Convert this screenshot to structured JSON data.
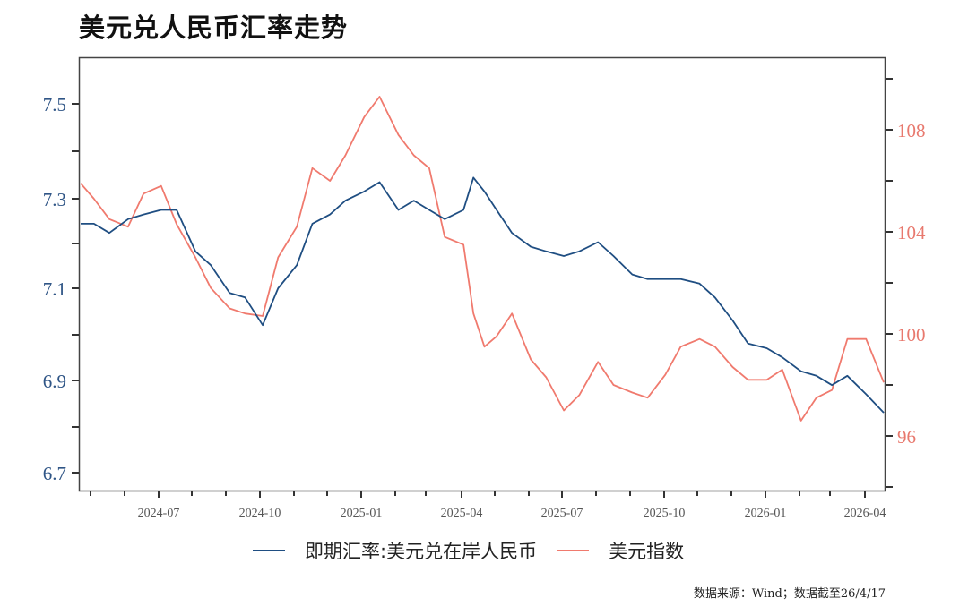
{
  "title": "美元兑人民币汇率走势",
  "legend": {
    "series1": "即期汇率:美元兑在岸人民币",
    "series2": "美元指数"
  },
  "source": "数据来源：Wind；数据截至26/4/17",
  "colors": {
    "cny": "#1f4e82",
    "dxy": "#f07a6e",
    "left_axis_text": "#2f5586",
    "right_axis_text": "#e8796e"
  },
  "axes": {
    "left_ticks": [
      "7.5",
      "7.3",
      "7.1",
      "6.9",
      "6.7"
    ],
    "right_ticks": [
      "108",
      "104",
      "100",
      "96"
    ],
    "x_ticks": [
      "2024-07",
      "2024-10",
      "2025-01",
      "2025-04",
      "2025-07",
      "2025-10",
      "2026-01",
      "2026-04"
    ]
  },
  "chart_data": {
    "type": "line",
    "title": "美元兑人民币汇率走势",
    "xlabel": "",
    "ylabel": "",
    "y_left": {
      "label": "即期汇率:美元兑在岸人民币",
      "ylim": [
        6.66,
        7.6
      ],
      "ticks": [
        7.5,
        7.3,
        7.1,
        6.9,
        6.7
      ]
    },
    "y_right": {
      "label": "美元指数",
      "ylim": [
        94,
        110
      ],
      "ticks": [
        108,
        104,
        100,
        96
      ]
    },
    "x_ticks": [
      "2024-07",
      "2024-10",
      "2025-01",
      "2025-04",
      "2025-07",
      "2025-10",
      "2026-01",
      "2026-04"
    ],
    "x_range": [
      "2024-04-19",
      "2026-04-17"
    ],
    "grid": false,
    "legend_position": "bottom",
    "series": [
      {
        "name": "即期汇率:美元兑在岸人民币",
        "axis": "left",
        "x": [
          "2024-04-19",
          "2024-05-01",
          "2024-05-15",
          "2024-06-01",
          "2024-06-15",
          "2024-07-01",
          "2024-07-15",
          "2024-08-01",
          "2024-08-15",
          "2024-09-01",
          "2024-09-15",
          "2024-10-01",
          "2024-10-15",
          "2024-11-01",
          "2024-11-15",
          "2024-12-01",
          "2024-12-15",
          "2025-01-01",
          "2025-01-15",
          "2025-02-01",
          "2025-02-15",
          "2025-03-01",
          "2025-03-15",
          "2025-04-01",
          "2025-04-10",
          "2025-04-20",
          "2025-05-01",
          "2025-05-15",
          "2025-06-01",
          "2025-06-15",
          "2025-07-01",
          "2025-07-15",
          "2025-08-01",
          "2025-08-15",
          "2025-09-01",
          "2025-09-15",
          "2025-10-01",
          "2025-10-15",
          "2025-11-01",
          "2025-11-15",
          "2025-12-01",
          "2025-12-15",
          "2026-01-01",
          "2026-01-15",
          "2026-02-01",
          "2026-02-15",
          "2026-03-01",
          "2026-03-15",
          "2026-04-01",
          "2026-04-17"
        ],
        "values": [
          7.24,
          7.24,
          7.22,
          7.25,
          7.26,
          7.27,
          7.27,
          7.18,
          7.15,
          7.09,
          7.08,
          7.02,
          7.1,
          7.15,
          7.24,
          7.26,
          7.29,
          7.31,
          7.33,
          7.27,
          7.29,
          7.27,
          7.25,
          7.27,
          7.34,
          7.31,
          7.27,
          7.22,
          7.19,
          7.18,
          7.17,
          7.18,
          7.2,
          7.17,
          7.13,
          7.12,
          7.12,
          7.12,
          7.11,
          7.08,
          7.03,
          6.98,
          6.97,
          6.95,
          6.92,
          6.91,
          6.89,
          6.91,
          6.87,
          6.83
        ]
      },
      {
        "name": "美元指数",
        "axis": "right",
        "x": [
          "2024-04-19",
          "2024-05-01",
          "2024-05-15",
          "2024-06-01",
          "2024-06-15",
          "2024-07-01",
          "2024-07-15",
          "2024-08-01",
          "2024-08-15",
          "2024-09-01",
          "2024-09-15",
          "2024-10-01",
          "2024-10-15",
          "2024-11-01",
          "2024-11-15",
          "2024-12-01",
          "2024-12-15",
          "2025-01-01",
          "2025-01-15",
          "2025-02-01",
          "2025-02-15",
          "2025-03-01",
          "2025-03-15",
          "2025-04-01",
          "2025-04-10",
          "2025-04-20",
          "2025-05-01",
          "2025-05-15",
          "2025-06-01",
          "2025-06-15",
          "2025-07-01",
          "2025-07-15",
          "2025-08-01",
          "2025-08-15",
          "2025-09-01",
          "2025-09-15",
          "2025-10-01",
          "2025-10-15",
          "2025-11-01",
          "2025-11-15",
          "2025-12-01",
          "2025-12-15",
          "2026-01-01",
          "2026-01-15",
          "2026-02-01",
          "2026-02-15",
          "2026-03-01",
          "2026-03-15",
          "2026-04-01",
          "2026-04-17"
        ],
        "values": [
          105.9,
          105.3,
          104.5,
          104.2,
          105.5,
          105.8,
          104.3,
          103.0,
          101.8,
          101.0,
          100.8,
          100.7,
          103.0,
          104.2,
          106.5,
          106.0,
          107.0,
          108.5,
          109.3,
          107.8,
          107.0,
          106.5,
          103.8,
          103.5,
          100.8,
          99.5,
          99.9,
          100.8,
          99.0,
          98.3,
          97.0,
          97.6,
          98.9,
          98.0,
          97.7,
          97.5,
          98.4,
          99.5,
          99.8,
          99.5,
          98.7,
          98.2,
          98.2,
          98.6,
          96.6,
          97.5,
          97.8,
          99.8,
          99.8,
          98.1
        ]
      }
    ]
  }
}
